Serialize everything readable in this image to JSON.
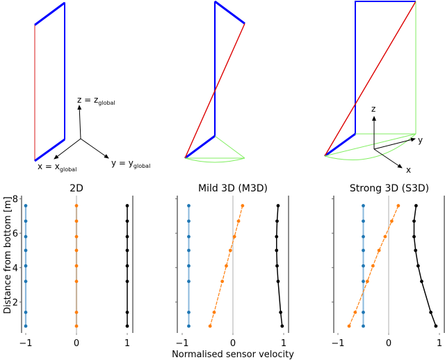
{
  "figure": {
    "diagrams": [
      {
        "name": "2D",
        "axes_labels": {
          "z": "z = z",
          "z_sub": "global",
          "x": "x = x",
          "x_sub": "global",
          "y": "y = y",
          "y_sub": "global"
        }
      },
      {
        "name": "M3D",
        "axes_labels": {}
      },
      {
        "name": "S3D",
        "axes_labels": {
          "z": "z",
          "y": "y",
          "x": "x"
        }
      }
    ],
    "colors": {
      "blue_edge": "#0000ff",
      "red_edge": "#e00000",
      "green_edge": "#80ee60",
      "series_blue": "#1f77b4",
      "series_orange": "#ff7f0e",
      "series_black": "#000000"
    }
  },
  "chart_data": [
    {
      "type": "line",
      "title": "2D",
      "xlabel": "",
      "ylabel": "Distance from bottom [m]",
      "xlim": [
        -1.08,
        1.1
      ],
      "ylim": [
        0.2,
        8.1
      ],
      "xticks": [
        "−1",
        "0",
        "1"
      ],
      "yticks": [
        "2",
        "4",
        "6",
        "8"
      ],
      "y": [
        7.6,
        6.7,
        5.8,
        5.0,
        4.1,
        3.2,
        1.4,
        0.6
      ],
      "series": [
        {
          "name": "blue",
          "color": "#1f77b4",
          "values": [
            -1,
            -1,
            -1,
            -1,
            -1,
            -1,
            -1,
            -1
          ]
        },
        {
          "name": "orange",
          "color": "#ff7f0e",
          "values": [
            0,
            0,
            0,
            0,
            0,
            0,
            0,
            0
          ]
        },
        {
          "name": "black",
          "color": "#000000",
          "values": [
            1,
            1,
            1,
            1,
            1,
            1,
            1,
            1
          ]
        }
      ]
    },
    {
      "type": "line",
      "title": "Mild 3D (M3D)",
      "xlabel": "Normalised sensor velocity",
      "ylabel": "",
      "xlim": [
        -1.1,
        1.1
      ],
      "ylim": [
        0.2,
        8.1
      ],
      "xticks": [
        "−1",
        "0",
        "1"
      ],
      "y": [
        7.6,
        6.7,
        5.8,
        5.0,
        4.1,
        3.2,
        1.4,
        0.6
      ],
      "series": [
        {
          "name": "blue",
          "color": "#1f77b4",
          "values": [
            -0.87,
            -0.87,
            -0.87,
            -0.87,
            -0.87,
            -0.87,
            -0.87,
            -0.87
          ]
        },
        {
          "name": "orange",
          "color": "#ff7f0e",
          "values": [
            0.19,
            0.11,
            0.03,
            -0.05,
            -0.13,
            -0.21,
            -0.37,
            -0.45
          ]
        },
        {
          "name": "black",
          "color": "#000000",
          "values": [
            0.89,
            0.87,
            0.86,
            0.86,
            0.87,
            0.89,
            0.94,
            0.97
          ]
        }
      ]
    },
    {
      "type": "line",
      "title": "Strong 3D (S3D)",
      "xlabel": "",
      "ylabel": "",
      "xlim": [
        -1.1,
        1.1
      ],
      "ylim": [
        0.2,
        8.1
      ],
      "xticks": [
        "−1",
        "0",
        "1"
      ],
      "y": [
        7.6,
        6.7,
        5.8,
        5.0,
        4.1,
        3.2,
        1.4,
        0.6
      ],
      "series": [
        {
          "name": "blue",
          "color": "#1f77b4",
          "values": [
            -0.5,
            -0.5,
            -0.5,
            -0.5,
            -0.5,
            -0.5,
            -0.5,
            -0.5
          ]
        },
        {
          "name": "orange",
          "color": "#ff7f0e",
          "values": [
            0.19,
            0.06,
            -0.07,
            -0.19,
            -0.31,
            -0.42,
            -0.66,
            -0.78
          ]
        },
        {
          "name": "black",
          "color": "#000000",
          "values": [
            0.54,
            0.5,
            0.5,
            0.53,
            0.58,
            0.65,
            0.83,
            0.93
          ]
        }
      ]
    }
  ]
}
